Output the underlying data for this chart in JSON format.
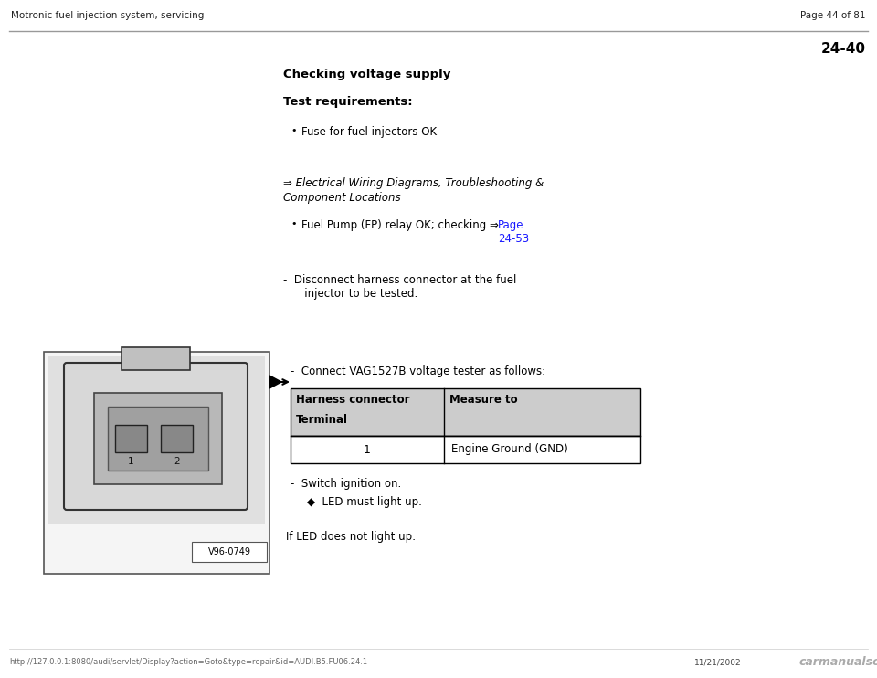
{
  "bg_color": "#ffffff",
  "header_left": "Motronic fuel injection system, servicing",
  "header_right": "Page 44 of 81",
  "section_num": "24-40",
  "title": "Checking voltage supply",
  "test_req_header": "Test requirements:",
  "bullet1": "Fuse for fuel injectors OK",
  "arrow_ref_line1": "⇒ Electrical Wiring Diagrams, Troubleshooting &",
  "arrow_ref_line2": "Component Locations",
  "bullet2_pre": "Fuel Pump (FP) relay OK; checking ⇒ ",
  "bullet2_link1": "Page",
  "bullet2_link2": "24-53",
  "bullet2_post": " .",
  "dash1_line1": "-  Disconnect harness connector at the fuel",
  "dash1_line2": "   injector to be tested.",
  "dash2": "-  Connect VAG1527B voltage tester as follows:",
  "table_col1_header1": "Harness connector",
  "table_col1_header2": "Terminal",
  "table_col2_header": "Measure to",
  "table_row1_col1": "1",
  "table_row1_col2": "Engine Ground (GND)",
  "dash3": "-  Switch ignition on.",
  "bullet3": "◆  LED must light up.",
  "if_led": "If LED does not light up:",
  "footer_url": "http://127.0.0.1:8080/audi/servlet/Display?action=Goto&type=repair&id=AUDI.B5.FU06.24.1",
  "footer_date": "11/21/2002",
  "footer_logo": "carmanualsoline.info",
  "font_color": "#000000",
  "link_color": "#1a1aff",
  "table_header_bg": "#cccccc",
  "table_border_color": "#000000",
  "header_line_color": "#999999",
  "footer_line_color": "#cccccc"
}
